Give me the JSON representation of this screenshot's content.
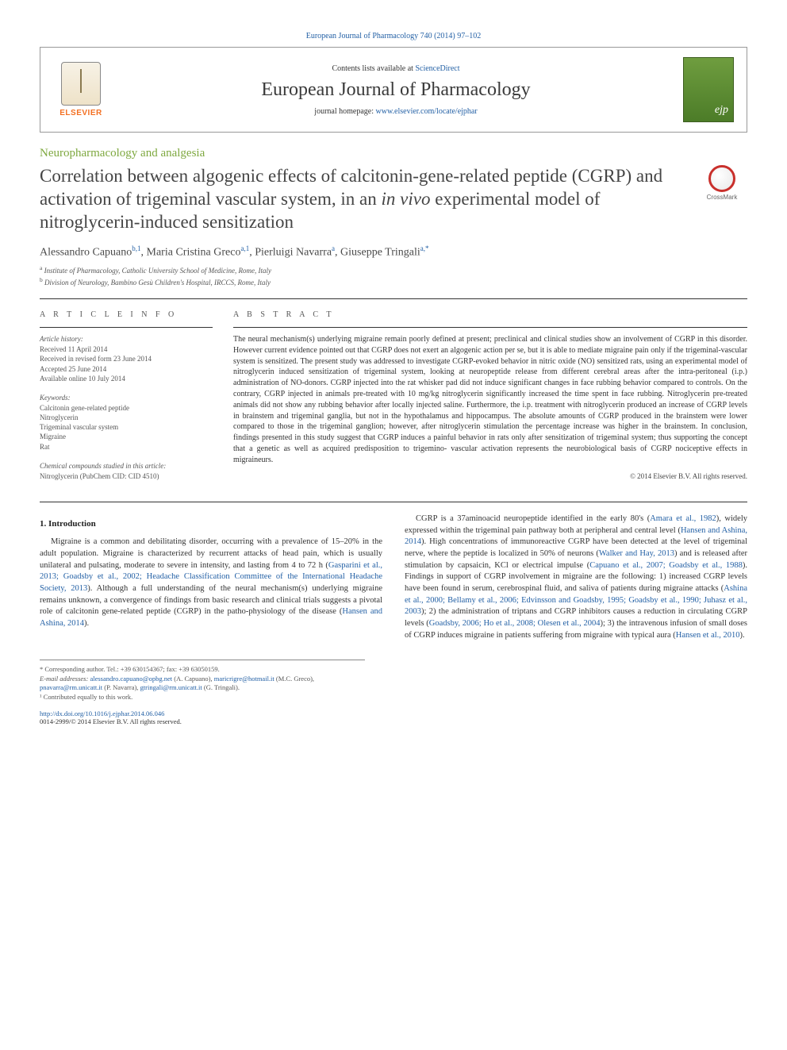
{
  "top_link": {
    "prefix": "",
    "journal": "European Journal of Pharmacology 740 (2014) 97–102"
  },
  "header": {
    "contents_prefix": "Contents lists available at ",
    "contents_link": "ScienceDirect",
    "journal_name": "European Journal of Pharmacology",
    "homepage_prefix": "journal homepage: ",
    "homepage_link": "www.elsevier.com/locate/ejphar",
    "publisher_wordmark": "ELSEVIER"
  },
  "section_category": "Neuropharmacology and analgesia",
  "title_pre_italic": "Correlation between algogenic effects of calcitonin-gene-related peptide (CGRP) and activation of trigeminal vascular system, in an ",
  "title_italic": "in vivo",
  "title_post_italic": " experimental model of nitroglycerin-induced sensitization",
  "crossmark_label": "CrossMark",
  "authors": {
    "a1": {
      "name": "Alessandro Capuano",
      "sup": "b,1"
    },
    "a2": {
      "name": "Maria Cristina Greco",
      "sup": "a,1"
    },
    "a3": {
      "name": "Pierluigi Navarra",
      "sup": "a"
    },
    "a4": {
      "name": "Giuseppe Tringali",
      "sup": "a,",
      "corr": "*"
    }
  },
  "affiliations": {
    "a": "Institute of Pharmacology, Catholic University School of Medicine, Rome, Italy",
    "b": "Division of Neurology, Bambino Gesù Children's Hospital, IRCCS, Rome, Italy"
  },
  "article_info": {
    "heading": "A R T I C L E  I N F O",
    "history_label": "Article history:",
    "received": "Received 11 April 2014",
    "revised": "Received in revised form 23 June 2014",
    "accepted": "Accepted 25 June 2014",
    "online": "Available online 10 July 2014",
    "keywords_label": "Keywords:",
    "kw1": "Calcitonin gene-related peptide",
    "kw2": "Nitroglycerin",
    "kw3": "Trigeminal vascular system",
    "kw4": "Migraine",
    "kw5": "Rat",
    "compounds_label": "Chemical compounds studied in this article:",
    "compound1": "Nitroglycerin (PubChem CID: CID 4510)"
  },
  "abstract": {
    "heading": "A B S T R A C T",
    "text": "The neural mechanism(s) underlying migraine remain poorly defined at present; preclinical and clinical studies show an involvement of CGRP in this disorder. However current evidence pointed out that CGRP does not exert an algogenic action per se, but it is able to mediate migraine pain only if the trigeminal-vascular system is sensitized. The present study was addressed to investigate CGRP-evoked behavior in nitric oxide (NO) sensitized rats, using an experimental model of nitroglycerin induced sensitization of trigeminal system, looking at neuropeptide release from different cerebral areas after the intra-peritoneal (i.p.) administration of NO-donors. CGRP injected into the rat whisker pad did not induce significant changes in face rubbing behavior compared to controls. On the contrary, CGRP injected in animals pre-treated with 10 mg/kg nitroglycerin significantly increased the time spent in face rubbing. Nitroglycerin pre-treated animals did not show any rubbing behavior after locally injected saline. Furthermore, the i.p. treatment with nitroglycerin produced an increase of CGRP levels in brainstem and trigeminal ganglia, but not in the hypothalamus and hippocampus. The absolute amounts of CGRP produced in the brainstem were lower compared to those in the trigeminal ganglion; however, after nitroglycerin stimulation the percentage increase was higher in the brainstem. In conclusion, findings presented in this study suggest that CGRP induces a painful behavior in rats only after sensitization of trigeminal system; thus supporting the concept that a genetic as well as acquired predisposition to trigemino- vascular activation represents the neurobiological basis of CGRP nociceptive effects in migraineurs.",
    "copyright": "© 2014 Elsevier B.V. All rights reserved."
  },
  "body": {
    "h1": "1. Introduction",
    "p1_a": "Migraine is a common and debilitating disorder, occurring with a prevalence of 15–20% in the adult population. Migraine is characterized by recurrent attacks of head pain, which is usually unilateral and pulsating, moderate to severe in intensity, and lasting from 4 to 72 h (",
    "p1_link1": "Gasparini et al., 2013; Goadsby et al., 2002; Headache Classification Committee of the International Headache Society, 2013",
    "p1_b": "). Although a full understanding of the neural mechanism(s) underlying migraine remains unknown, a convergence of findings from basic research and clinical trials suggests a pivotal role of calcitonin gene-related peptide (CGRP) ",
    "p1_c": "in the patho-physiology of the disease (",
    "p1_link2": "Hansen and Ashina, 2014",
    "p1_d": ").",
    "p2_a": "CGRP is a 37aminoacid neuropeptide identified in the early 80's (",
    "p2_link1": "Amara et al., 1982",
    "p2_b": "), widely expressed within the trigeminal pain pathway both at peripheral and central level (",
    "p2_link2": "Hansen and Ashina, 2014",
    "p2_c": "). High concentrations of immunoreactive CGRP have been detected at the level of trigeminal nerve, where the peptide is localized in 50% of neurons (",
    "p2_link3": "Walker and Hay, 2013",
    "p2_d": ") and is released after stimulation by capsaicin, KCl or electrical impulse (",
    "p2_link4": "Capuano et al., 2007; Goadsby et al., 1988",
    "p2_e": "). Findings in support of CGRP involvement in migraine are the following: 1) increased CGRP levels have been found in serum, cerebrospinal fluid, and saliva of patients during migraine attacks (",
    "p2_link5": "Ashina et al., 2000; Bellamy et al., 2006; Edvinsson and Goadsby, 1995; Goadsby et al., 1990; Juhasz et al., 2003",
    "p2_f": "); 2) the administration of triptans and CGRP inhibitors causes a reduction in circulating CGRP levels (",
    "p2_link6": "Goadsby, 2006; Ho et al., 2008; Olesen et al., 2004",
    "p2_g": "); 3) the intravenous infusion of small doses of CGRP induces migraine in patients suffering from migraine with typical aura (",
    "p2_link7": "Hansen et al., 2010",
    "p2_h": ")."
  },
  "footnotes": {
    "corr_label": "* Corresponding author. Tel.: +39 630154367; fax: +39 63050159.",
    "email_label": "E-mail addresses: ",
    "e1": "alessandro.capuano@opbg.net",
    "e1_who": " (A. Capuano), ",
    "e2": "maricrigre@hotmail.it",
    "e2_who": " (M.C. Greco), ",
    "e3": "pnavarra@rm.unicatt.it",
    "e3_who": " (P. Navarra), ",
    "e4": "gtringali@rm.unicatt.it",
    "e4_who": " (G. Tringali).",
    "contrib": "¹ Contributed equally to this work."
  },
  "doi": {
    "link": "http://dx.doi.org/10.1016/j.ejphar.2014.06.046",
    "issn": "0014-2999/© 2014 Elsevier B.V. All rights reserved."
  },
  "colors": {
    "link": "#2360a5",
    "category": "#7ea83f",
    "elsevier_orange": "#f37022"
  }
}
